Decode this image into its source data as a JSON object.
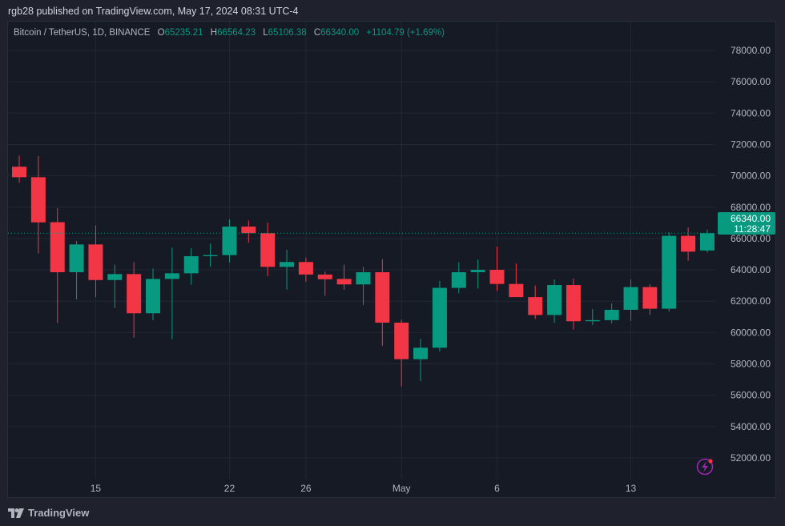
{
  "publisher_line": "rgb28 published on TradingView.com, May 17, 2024 08:31 UTC-4",
  "legend": {
    "symbol": "Bitcoin / TetherUS, 1D, BINANCE",
    "o_label": "O",
    "o": "65235.21",
    "h_label": "H",
    "h": "66564.23",
    "l_label": "L",
    "l": "65106.38",
    "c_label": "C",
    "c": "66340.00",
    "change": "+1104.79 (+1.69%)"
  },
  "price_badge": {
    "price": "66340.00",
    "countdown": "11:28:47"
  },
  "brand": "TradingView",
  "icons": {
    "logo": "tradingview-logo-icon",
    "alert": "lightning-icon"
  },
  "colors": {
    "up": "#089981",
    "down": "#f23645",
    "background": "#161a25",
    "grid": "#232734",
    "text": "#b2b5be",
    "alert": "#9c27b0"
  },
  "chart_data": {
    "type": "candlestick",
    "title": "",
    "ylim": [
      51000,
      79500
    ],
    "y_ticks": [
      "52000.00",
      "54000.00",
      "56000.00",
      "58000.00",
      "60000.00",
      "62000.00",
      "64000.00",
      "66000.00",
      "68000.00",
      "70000.00",
      "72000.00",
      "74000.00",
      "76000.00",
      "78000.00"
    ],
    "x_tick_labels": [
      {
        "label": "15",
        "date": "2024-04-15"
      },
      {
        "label": "22",
        "date": "2024-04-22"
      },
      {
        "label": "26",
        "date": "2024-04-26"
      },
      {
        "label": "May",
        "date": "2024-05-01"
      },
      {
        "label": "6",
        "date": "2024-05-06"
      },
      {
        "label": "13",
        "date": "2024-05-13"
      }
    ],
    "last_price_line": 66340.0,
    "grid": true,
    "candles": [
      {
        "date": "2024-04-11",
        "o": 70580,
        "h": 71290,
        "l": 69555,
        "c": 69910
      },
      {
        "date": "2024-04-12",
        "o": 69910,
        "h": 71250,
        "l": 65040,
        "c": 67030
      },
      {
        "date": "2024-04-13",
        "o": 67040,
        "h": 67930,
        "l": 60610,
        "c": 63850
      },
      {
        "date": "2024-04-14",
        "o": 63850,
        "h": 65840,
        "l": 62110,
        "c": 65620
      },
      {
        "date": "2024-04-15",
        "o": 65620,
        "h": 66830,
        "l": 62260,
        "c": 63350
      },
      {
        "date": "2024-04-16",
        "o": 63350,
        "h": 64340,
        "l": 61565,
        "c": 63730
      },
      {
        "date": "2024-04-17",
        "o": 63730,
        "h": 64500,
        "l": 59670,
        "c": 61230
      },
      {
        "date": "2024-04-18",
        "o": 61230,
        "h": 64090,
        "l": 60780,
        "c": 63420
      },
      {
        "date": "2024-04-19",
        "o": 63420,
        "h": 65420,
        "l": 59570,
        "c": 63780
      },
      {
        "date": "2024-04-20",
        "o": 63780,
        "h": 65380,
        "l": 63050,
        "c": 64870
      },
      {
        "date": "2024-04-21",
        "o": 64870,
        "h": 65670,
        "l": 64190,
        "c": 64940
      },
      {
        "date": "2024-04-22",
        "o": 64940,
        "h": 67220,
        "l": 64480,
        "c": 66760
      },
      {
        "date": "2024-04-23",
        "o": 66760,
        "h": 67150,
        "l": 65740,
        "c": 66340
      },
      {
        "date": "2024-04-24",
        "o": 66340,
        "h": 67020,
        "l": 63590,
        "c": 64190
      },
      {
        "date": "2024-04-25",
        "o": 64190,
        "h": 65280,
        "l": 62740,
        "c": 64500
      },
      {
        "date": "2024-04-26",
        "o": 64500,
        "h": 64780,
        "l": 63235,
        "c": 63700
      },
      {
        "date": "2024-04-27",
        "o": 63700,
        "h": 63900,
        "l": 62350,
        "c": 63400
      },
      {
        "date": "2024-04-28",
        "o": 63420,
        "h": 64340,
        "l": 62740,
        "c": 63070
      },
      {
        "date": "2024-04-29",
        "o": 63070,
        "h": 64190,
        "l": 61750,
        "c": 63850
      },
      {
        "date": "2024-04-30",
        "o": 63850,
        "h": 64680,
        "l": 59160,
        "c": 60630
      },
      {
        "date": "2024-05-01",
        "o": 60630,
        "h": 60820,
        "l": 56560,
        "c": 58300
      },
      {
        "date": "2024-05-02",
        "o": 58300,
        "h": 59600,
        "l": 56900,
        "c": 59030
      },
      {
        "date": "2024-05-03",
        "o": 59030,
        "h": 63290,
        "l": 58790,
        "c": 62850
      },
      {
        "date": "2024-05-04",
        "o": 62850,
        "h": 64480,
        "l": 62510,
        "c": 63850
      },
      {
        "date": "2024-05-05",
        "o": 63850,
        "h": 64650,
        "l": 62810,
        "c": 64000
      },
      {
        "date": "2024-05-06",
        "o": 64000,
        "h": 65480,
        "l": 62660,
        "c": 63100
      },
      {
        "date": "2024-05-07",
        "o": 63100,
        "h": 64400,
        "l": 62260,
        "c": 62260
      },
      {
        "date": "2024-05-08",
        "o": 62260,
        "h": 63000,
        "l": 60870,
        "c": 61120
      },
      {
        "date": "2024-05-09",
        "o": 61120,
        "h": 63390,
        "l": 60610,
        "c": 63030
      },
      {
        "date": "2024-05-10",
        "o": 63030,
        "h": 63440,
        "l": 60190,
        "c": 60720
      },
      {
        "date": "2024-05-11",
        "o": 60720,
        "h": 61500,
        "l": 60480,
        "c": 60790
      },
      {
        "date": "2024-05-12",
        "o": 60790,
        "h": 61860,
        "l": 60580,
        "c": 61450
      },
      {
        "date": "2024-05-13",
        "o": 61450,
        "h": 63390,
        "l": 60730,
        "c": 62900
      },
      {
        "date": "2024-05-14",
        "o": 62900,
        "h": 63080,
        "l": 61120,
        "c": 61520
      },
      {
        "date": "2024-05-15",
        "o": 61520,
        "h": 66400,
        "l": 61330,
        "c": 66170
      },
      {
        "date": "2024-05-16",
        "o": 66170,
        "h": 66710,
        "l": 64580,
        "c": 65160
      },
      {
        "date": "2024-05-17",
        "o": 65235.21,
        "h": 66564.23,
        "l": 65106.38,
        "c": 66340.0
      }
    ]
  }
}
